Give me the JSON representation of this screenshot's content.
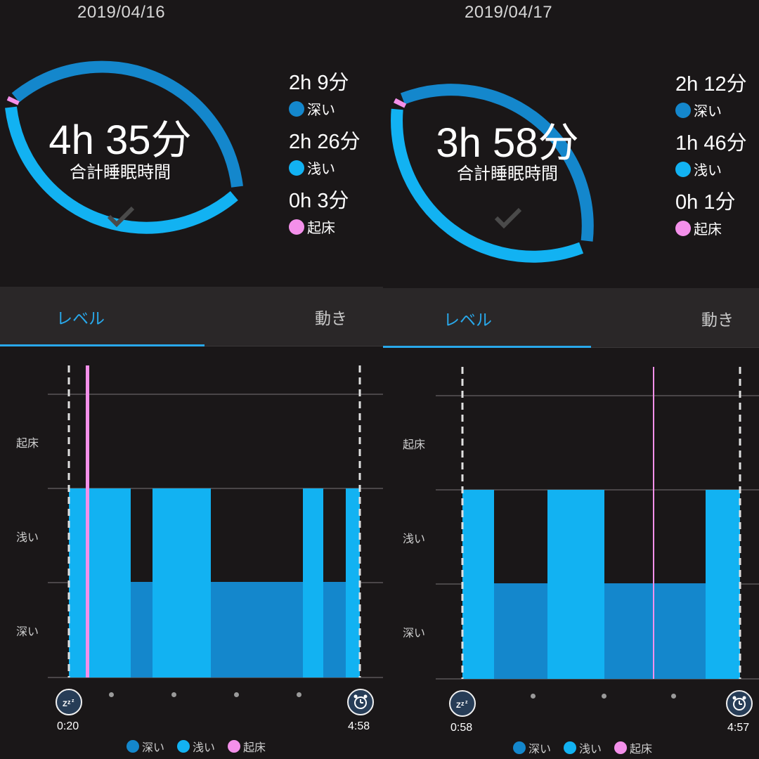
{
  "colors": {
    "deep": "#1487cc",
    "light": "#12b2f2",
    "awake": "#f490ea",
    "accent": "#29a8ea"
  },
  "panels": [
    {
      "date": "2019/04/16",
      "total": "4h 35分",
      "total_label": "合計睡眠時間",
      "stats": [
        {
          "value": "2h 9分",
          "label": "深い"
        },
        {
          "value": "2h 26分",
          "label": "浅い"
        },
        {
          "value": "0h 3分",
          "label": "起床"
        }
      ],
      "tabs": {
        "level": "レベル",
        "motion": "動き"
      },
      "chart": {
        "y_labels": [
          "起床",
          "浅い",
          "深い"
        ],
        "start": "0:20",
        "end": "4:58"
      },
      "legend": [
        "深い",
        "浅い",
        "起床"
      ]
    },
    {
      "date": "2019/04/17",
      "total": "3h 58分",
      "total_label": "合計睡眠時間",
      "stats": [
        {
          "value": "2h 12分",
          "label": "深い"
        },
        {
          "value": "1h 46分",
          "label": "浅い"
        },
        {
          "value": "0h 1分",
          "label": "起床"
        }
      ],
      "tabs": {
        "level": "レベル",
        "motion": "動き"
      },
      "chart": {
        "y_labels": [
          "起床",
          "浅い",
          "深い"
        ],
        "start": "0:58",
        "end": "4:57"
      },
      "legend": [
        "深い",
        "浅い",
        "起床"
      ]
    }
  ]
}
